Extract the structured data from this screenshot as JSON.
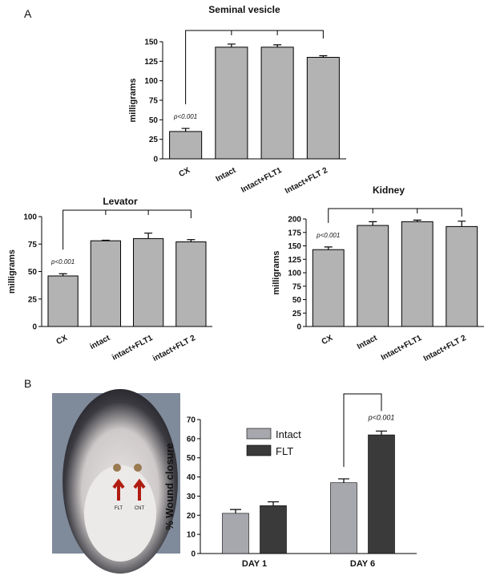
{
  "panel_labels": [
    "A",
    "B"
  ],
  "photo": {
    "labels": [
      "FLT",
      "CNT"
    ]
  },
  "chart_data": [
    {
      "type": "bar",
      "title": "Seminal vesicle",
      "y_label": "milligrams",
      "categories": [
        "CX",
        "Intact",
        "Intact+FLT1",
        "Intact+FLT 2"
      ],
      "values": [
        35,
        143,
        143,
        130
      ],
      "errors": [
        4,
        4,
        3,
        2
      ],
      "color": "#b3b3b3",
      "ylim": [
        0,
        150
      ],
      "yticks": [
        0,
        25,
        50,
        75,
        100,
        125,
        150
      ],
      "annotation": "p<0.001"
    },
    {
      "type": "bar",
      "title": "Levator",
      "y_label": "milligrams",
      "categories": [
        "CX",
        "intact",
        "intact+FLT1",
        "intact+FLT 2"
      ],
      "values": [
        46,
        78,
        80,
        77
      ],
      "errors": [
        2,
        0.5,
        5,
        2
      ],
      "color": "#b3b3b3",
      "ylim": [
        0,
        100
      ],
      "yticks": [
        0,
        25,
        50,
        75,
        100
      ],
      "annotation": "p<0.001"
    },
    {
      "type": "bar",
      "title": "Kidney",
      "y_label": "milligrams",
      "categories": [
        "CX",
        "Intact",
        "Intact+FLT1",
        "Intact+FLT 2"
      ],
      "values": [
        143,
        188,
        195,
        186
      ],
      "errors": [
        5,
        7,
        3,
        10
      ],
      "color": "#b3b3b3",
      "ylim": [
        0,
        200
      ],
      "yticks": [
        0,
        25,
        50,
        75,
        100,
        125,
        150,
        175,
        200
      ],
      "annotation": "p<0.001"
    },
    {
      "type": "grouped_bar",
      "y_label": "% Wound closure",
      "categories": [
        "DAY 1",
        "DAY 6"
      ],
      "series": [
        {
          "name": "Intact",
          "color": "#a7a7ae",
          "values": [
            21,
            37
          ],
          "errors": [
            2,
            2
          ]
        },
        {
          "name": "FLT",
          "color": "#3a3a3a",
          "values": [
            25,
            62
          ],
          "errors": [
            2,
            2
          ]
        }
      ],
      "ylim": [
        0,
        70
      ],
      "yticks": [
        0,
        10,
        20,
        30,
        40,
        50,
        60,
        70
      ],
      "annotation": "p<0.001"
    }
  ]
}
